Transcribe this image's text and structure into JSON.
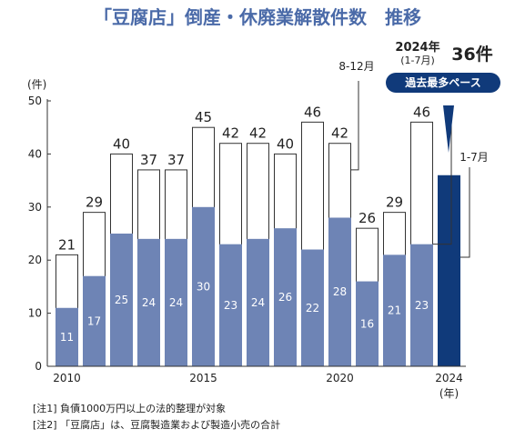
{
  "chart_data": {
    "type": "bar",
    "title": "「豆腐店」倒産・休廃業解散件数　推移",
    "y_unit": "(件)",
    "x_unit": "(年)",
    "ylim": [
      0,
      50
    ],
    "yticks": [
      0,
      10,
      20,
      30,
      40,
      50
    ],
    "grid": false,
    "categories": [
      "2010",
      "2011",
      "2012",
      "2013",
      "2014",
      "2015",
      "2016",
      "2017",
      "2018",
      "2019",
      "2020",
      "2021",
      "2022",
      "2023",
      "2024"
    ],
    "x_tick_labels": {
      "2010": "2010",
      "2015": "2015",
      "2020": "2020",
      "2024": "2024"
    },
    "series": [
      {
        "name": "",
        "role": "inner",
        "color": "#6e84b5",
        "values": [
          11,
          17,
          25,
          24,
          24,
          30,
          23,
          24,
          26,
          22,
          28,
          16,
          21,
          23,
          36
        ]
      },
      {
        "name": "",
        "role": "total",
        "color": "#ffffff",
        "values": [
          21,
          29,
          40,
          37,
          37,
          45,
          42,
          42,
          40,
          46,
          42,
          26,
          29,
          46,
          36
        ]
      }
    ],
    "highlight": {
      "category": "2024",
      "color": "#103a7a",
      "year_label": "2024年",
      "period_label": "(1-7月)",
      "count_label": "36件",
      "badge": "過去最多ペース",
      "callout": "1-7月"
    },
    "annotations": [
      {
        "text": "8-12月"
      }
    ]
  },
  "notes": [
    "[注1]  負債1000万円以上の法的整理が対象",
    "[注2]  「豆腐店」は、豆腐製造業および製造小売の合計"
  ]
}
